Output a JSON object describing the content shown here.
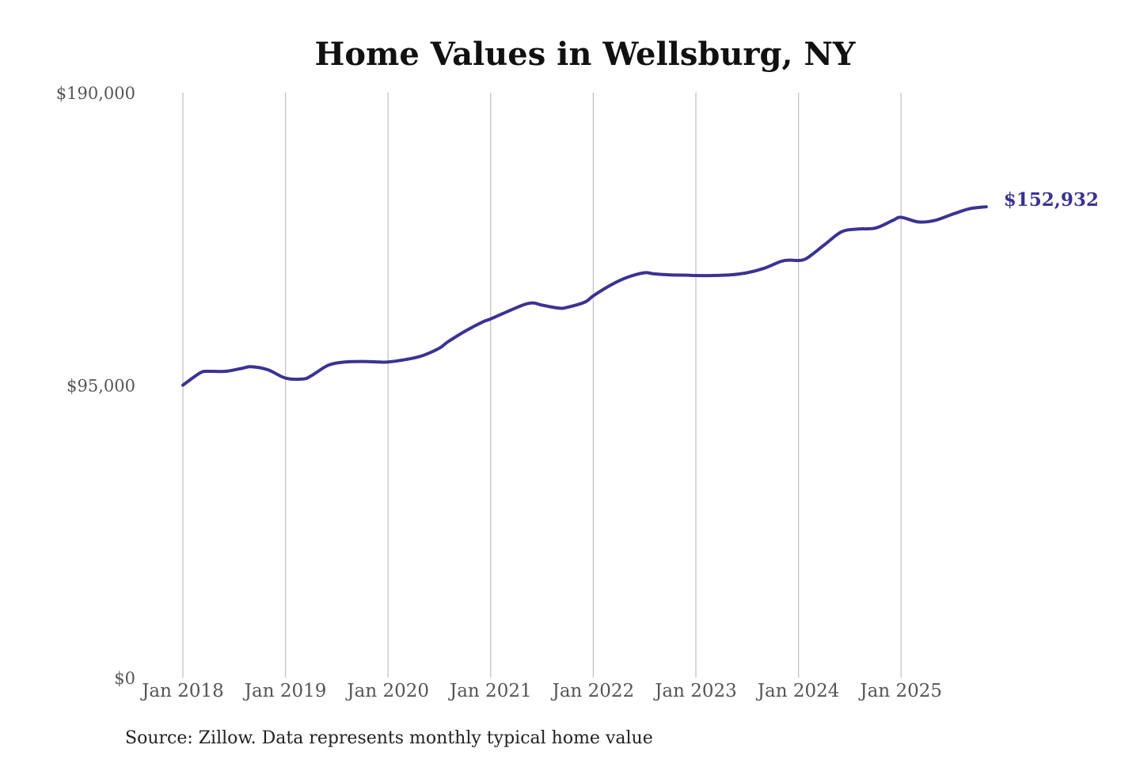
{
  "chart_data": {
    "type": "line",
    "title": "Home Values in Wellsburg, NY",
    "xlabel": "",
    "ylabel": "",
    "ylim": [
      0,
      190000
    ],
    "yticks": [
      {
        "value": 0,
        "label": "$0"
      },
      {
        "value": 95000,
        "label": "$95,000"
      },
      {
        "value": 190000,
        "label": "$190,000"
      }
    ],
    "xticks": [
      {
        "value": 2018.0,
        "label": "Jan 2018"
      },
      {
        "value": 2019.0,
        "label": "Jan 2019"
      },
      {
        "value": 2020.0,
        "label": "Jan 2020"
      },
      {
        "value": 2021.0,
        "label": "Jan 2021"
      },
      {
        "value": 2022.0,
        "label": "Jan 2022"
      },
      {
        "value": 2023.0,
        "label": "Jan 2023"
      },
      {
        "value": 2024.0,
        "label": "Jan 2024"
      },
      {
        "value": 2025.0,
        "label": "Jan 2025"
      }
    ],
    "xlim": [
      2018.0,
      2025.8
    ],
    "grid": "vertical",
    "series": [
      {
        "color": "#3a3393",
        "x": [
          2018.0,
          2018.17,
          2018.25,
          2018.42,
          2018.58,
          2018.67,
          2018.83,
          2019.0,
          2019.17,
          2019.25,
          2019.42,
          2019.58,
          2019.75,
          2019.92,
          2020.0,
          2020.17,
          2020.33,
          2020.5,
          2020.58,
          2020.75,
          2020.92,
          2021.0,
          2021.17,
          2021.33,
          2021.42,
          2021.5,
          2021.67,
          2021.75,
          2021.92,
          2022.0,
          2022.17,
          2022.33,
          2022.5,
          2022.58,
          2022.75,
          2022.92,
          2023.0,
          2023.17,
          2023.33,
          2023.5,
          2023.67,
          2023.83,
          2023.92,
          2024.0,
          2024.08,
          2024.25,
          2024.42,
          2024.58,
          2024.75,
          2024.92,
          2025.0,
          2025.17,
          2025.33,
          2025.5,
          2025.67,
          2025.83
        ],
        "y": [
          95000,
          99000,
          99500,
          99500,
          100500,
          101000,
          100000,
          97300,
          97000,
          98000,
          101500,
          102500,
          102700,
          102500,
          102500,
          103300,
          104500,
          107000,
          109000,
          112500,
          115500,
          116500,
          119000,
          121200,
          121700,
          121000,
          120000,
          120300,
          122000,
          124000,
          127500,
          130000,
          131500,
          131200,
          130800,
          130700,
          130600,
          130600,
          130800,
          131500,
          133000,
          135200,
          135600,
          135500,
          136200,
          140500,
          144800,
          145700,
          146000,
          148500,
          149500,
          148000,
          148500,
          150500,
          152300,
          152932
        ]
      }
    ],
    "end_label": "$152,932",
    "source": "Source: Zillow. Data represents monthly typical home value"
  }
}
